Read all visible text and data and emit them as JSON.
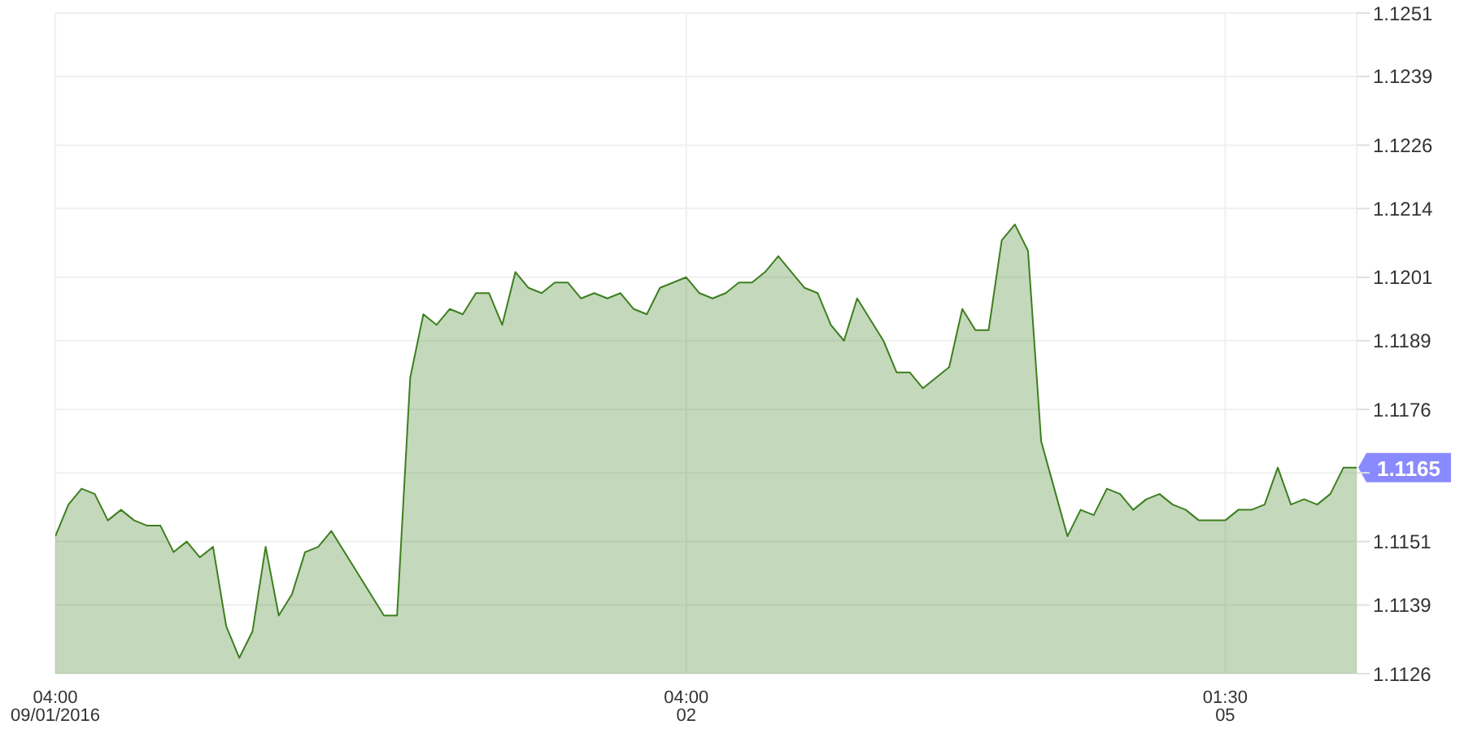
{
  "chart_data": {
    "type": "area",
    "categories": [
      "04:00\n09/01/2016",
      null,
      null,
      null,
      null,
      null,
      null,
      null,
      null,
      null,
      null,
      null,
      null,
      null,
      null,
      null,
      null,
      null,
      null,
      null,
      null,
      null,
      null,
      null,
      null,
      null,
      null,
      null,
      null,
      null,
      null,
      null,
      null,
      null,
      null,
      null,
      null,
      null,
      null,
      null,
      null,
      null,
      null,
      null,
      null,
      null,
      null,
      null,
      "04:00\n02",
      null,
      null,
      null,
      null,
      null,
      null,
      null,
      null,
      null,
      null,
      null,
      null,
      null,
      null,
      null,
      null,
      null,
      null,
      null,
      null,
      null,
      null,
      null,
      null,
      null,
      null,
      null,
      null,
      null,
      null,
      null,
      null,
      null,
      null,
      null,
      null,
      null,
      null,
      null,
      null,
      "01:30\n05",
      null,
      null,
      null,
      null,
      null,
      null,
      null,
      null,
      null,
      null
    ],
    "series": [
      {
        "color": "#3d7f1f",
        "values": [
          1.1152,
          1.1158,
          1.1161,
          1.116,
          1.1155,
          1.1157,
          1.1155,
          1.1154,
          1.1154,
          1.1149,
          1.1151,
          1.1148,
          1.115,
          1.1135,
          1.1129,
          1.1134,
          1.115,
          1.1137,
          1.1141,
          1.1149,
          1.115,
          1.1153,
          1.1149,
          1.1145,
          1.1141,
          1.1137,
          1.1137,
          1.1182,
          1.1194,
          1.1192,
          1.1195,
          1.1194,
          1.1198,
          1.1198,
          1.1192,
          1.1202,
          1.1199,
          1.1198,
          1.12,
          1.12,
          1.1197,
          1.1198,
          1.1197,
          1.1198,
          1.1195,
          1.1194,
          1.1199,
          1.12,
          1.1201,
          1.1198,
          1.1197,
          1.1198,
          1.12,
          1.12,
          1.1202,
          1.1205,
          1.1202,
          1.1199,
          1.1198,
          1.1192,
          1.1189,
          1.1197,
          1.1193,
          1.1189,
          1.1183,
          1.1183,
          1.118,
          1.1182,
          1.1184,
          1.1195,
          1.1191,
          1.1191,
          1.1208,
          1.1211,
          1.1206,
          1.117,
          1.1161,
          1.1152,
          1.1157,
          1.1156,
          1.1161,
          1.116,
          1.1157,
          1.1159,
          1.116,
          1.1158,
          1.1157,
          1.1155,
          1.1155,
          1.1155,
          1.1157,
          1.1157,
          1.1158,
          1.1165,
          1.1158,
          1.1159,
          1.1158,
          1.116,
          1.1165,
          1.1165
        ]
      }
    ],
    "ylim": [
      1.1126,
      1.1251
    ],
    "yticks": [
      1.1126,
      1.1139,
      1.1151,
      {
        "value": 1.1164,
        "label": null
      },
      1.1176,
      1.1189,
      1.1201,
      1.1214,
      1.1226,
      1.1239,
      1.1251
    ],
    "annotations": [
      "1.1165"
    ],
    "grid": true
  }
}
